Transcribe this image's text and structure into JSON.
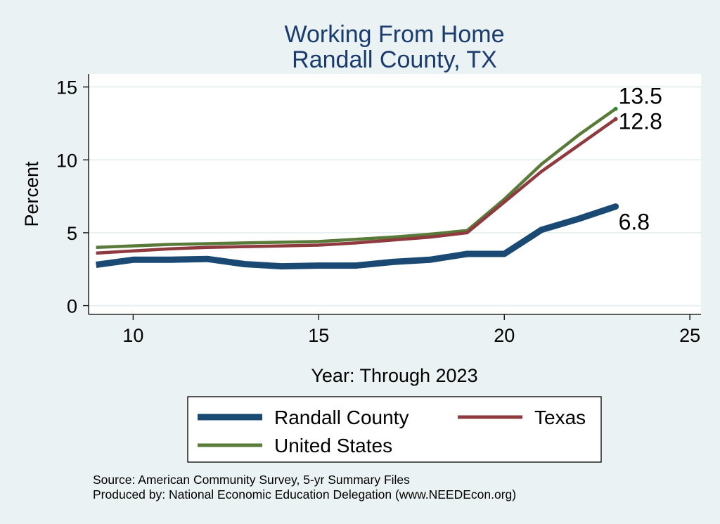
{
  "chart_data": {
    "type": "line",
    "title": "Working From Home",
    "subtitle": "Randall County, TX",
    "xlabel": "Year: Through 2023",
    "ylabel": "Percent",
    "xlim": [
      8.8,
      25.3
    ],
    "ylim": [
      -0.6,
      15.9
    ],
    "xticks": [
      10,
      15,
      20,
      25
    ],
    "yticks": [
      0,
      5,
      10,
      15
    ],
    "grid": true,
    "legend_position": "bottom",
    "series": [
      {
        "name": "Randall County",
        "color": "#1a4a73",
        "x": [
          9,
          10,
          11,
          12,
          13,
          14,
          15,
          16,
          17,
          18,
          19,
          20,
          21,
          22,
          23
        ],
        "y": [
          2.8,
          3.15,
          3.15,
          3.2,
          2.85,
          2.7,
          2.75,
          2.75,
          3.0,
          3.15,
          3.55,
          3.55,
          5.2,
          5.95,
          6.8
        ],
        "end_label": "6.8"
      },
      {
        "name": "Texas",
        "color": "#8f3a3e",
        "x": [
          9,
          10,
          11,
          12,
          13,
          14,
          15,
          16,
          17,
          18,
          19,
          20,
          21,
          22,
          23
        ],
        "y": [
          3.6,
          3.75,
          3.9,
          4.0,
          4.05,
          4.1,
          4.15,
          4.3,
          4.5,
          4.7,
          5.0,
          7.1,
          9.2,
          11.0,
          12.8
        ],
        "end_label": "12.8"
      },
      {
        "name": "United States",
        "color": "#5a7a3a",
        "x": [
          9,
          10,
          11,
          12,
          13,
          14,
          15,
          16,
          17,
          18,
          19,
          20,
          21,
          22,
          23
        ],
        "y": [
          4.0,
          4.1,
          4.2,
          4.25,
          4.3,
          4.35,
          4.4,
          4.55,
          4.7,
          4.9,
          5.15,
          7.3,
          9.7,
          11.7,
          13.5
        ],
        "end_label": "13.5"
      }
    ]
  },
  "source_note": "Source: American Community Survey, 5-yr Summary Files",
  "produced_note": "Produced by: National Economic Education Delegation (www.NEEDEcon.org)"
}
